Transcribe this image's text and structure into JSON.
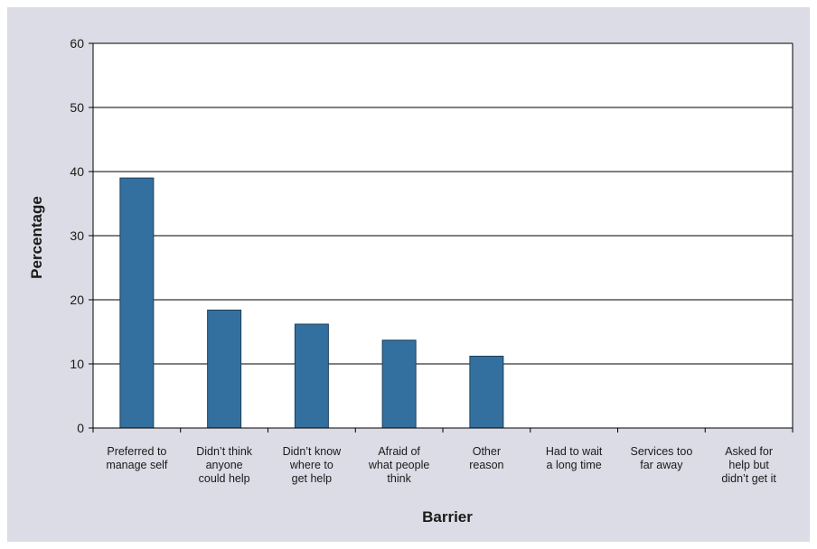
{
  "chart_data": {
    "type": "bar",
    "title": "",
    "xlabel": "Barrier",
    "ylabel": "Percentage",
    "ylim": [
      0,
      60
    ],
    "yticks": [
      0,
      10,
      20,
      30,
      40,
      50,
      60
    ],
    "grid": true,
    "categories": [
      [
        "Preferred to",
        "manage self"
      ],
      [
        "Didn’t think",
        "anyone",
        "could help"
      ],
      [
        "Didn’t know",
        "where to",
        "get help"
      ],
      [
        "Afraid of",
        "what people",
        "think"
      ],
      [
        "Other",
        "reason"
      ],
      [
        "Had to wait",
        "a long time"
      ],
      [
        "Services too",
        "far away"
      ],
      [
        "Asked for",
        "help but",
        "didn’t get it"
      ]
    ],
    "values": [
      39,
      18.4,
      16.2,
      13.7,
      11.2,
      0,
      0,
      0
    ],
    "colors": {
      "bar": "#33709f",
      "bar_edge": "#1f3f5a",
      "background": "#dcdce6",
      "plot": "#ffffff",
      "axis": "#000000"
    }
  }
}
